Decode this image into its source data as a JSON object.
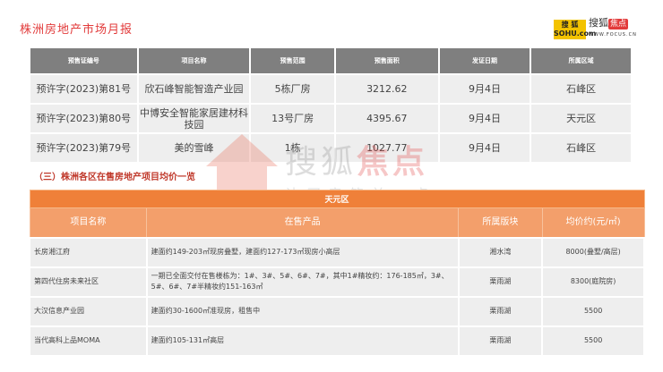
{
  "header": {
    "title": "株洲房地产市场月报",
    "logo_sohu": "搜狐 SOHU.com",
    "logo_focus": "搜狐焦点",
    "logo_focus_url": "WWW.FOCUS.CN"
  },
  "presale_table": {
    "columns": [
      "预售证编号",
      "项目名称",
      "预售范围",
      "预售面积",
      "发证日期",
      "所属区域"
    ],
    "rows": [
      [
        "预许字(2023)第81号",
        "欣石峰智能智造产业园",
        "5栋厂房",
        "3212.62",
        "9月4日",
        "石峰区"
      ],
      [
        "预许字(2023)第80号",
        "中博安全智能家居建材科技园",
        "13号厂房",
        "4395.67",
        "9月4日",
        "天元区"
      ],
      [
        "预许字(2023)第79号",
        "美的雪峰",
        "1栋",
        "1027.77",
        "9月4日",
        "石峰区"
      ]
    ]
  },
  "section_title": "（三）株洲各区在售房地产项目均价一览",
  "price_table": {
    "district": "天元区",
    "columns": [
      "项目名称",
      "在售产品",
      "所属版块",
      "均价约(元/㎡)"
    ],
    "rows": [
      [
        "长房湘江府",
        "建面约149-203㎡现房叠墅，建面约127-173㎡现房小高层",
        "湘水湾",
        "8000(叠墅/高层)"
      ],
      [
        "第四代住房未来社区",
        "一期已全面交付在售楼栋为：1#、3#、5#、6#、7#，其中1#精妆约：176-185㎡，3#、5#、6#、7#半精妆约151-163㎡",
        "栗雨湖",
        "8300(庭院房)"
      ],
      [
        "大汉信息产业园",
        "建面约30-1600㎡准现房，租售中",
        "栗雨湖",
        "5500"
      ],
      [
        "当代高科上品MOMA",
        "建面约105-131㎡高层",
        "栗雨湖",
        "5500"
      ]
    ]
  },
  "watermark": {
    "brand": "搜狐焦点",
    "slogan": "让买房简单一点"
  },
  "colors": {
    "title": "#e23b3b",
    "table_header_gray": "#7f7f7f",
    "orange_band": "#ef8039",
    "orange_header": "#f39f6b"
  }
}
